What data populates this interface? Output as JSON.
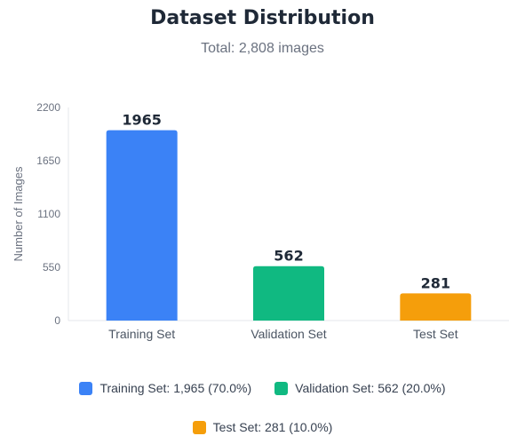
{
  "title": "Dataset Distribution",
  "subtitle": "Total: 2,808 images",
  "chart_data": {
    "type": "bar",
    "categories": [
      "Training Set",
      "Validation Set",
      "Test Set"
    ],
    "values": [
      1965,
      562,
      281
    ],
    "value_labels": [
      "1965",
      "562",
      "281"
    ],
    "colors": [
      "#3b82f6",
      "#10b981",
      "#f59e0b"
    ],
    "ylabel": "Number of Images",
    "xlabel": "",
    "ylim": [
      0,
      2200
    ],
    "yticks": [
      0,
      550,
      1100,
      1650,
      2200
    ],
    "grid": false,
    "legend_position": "bottom"
  },
  "legend": {
    "items": [
      {
        "label": "Training Set: 1,965 (70.0%)",
        "color": "#3b82f6"
      },
      {
        "label": "Validation Set: 562 (20.0%)",
        "color": "#10b981"
      },
      {
        "label": "Test Set: 281 (10.0%)",
        "color": "#f59e0b"
      }
    ]
  }
}
